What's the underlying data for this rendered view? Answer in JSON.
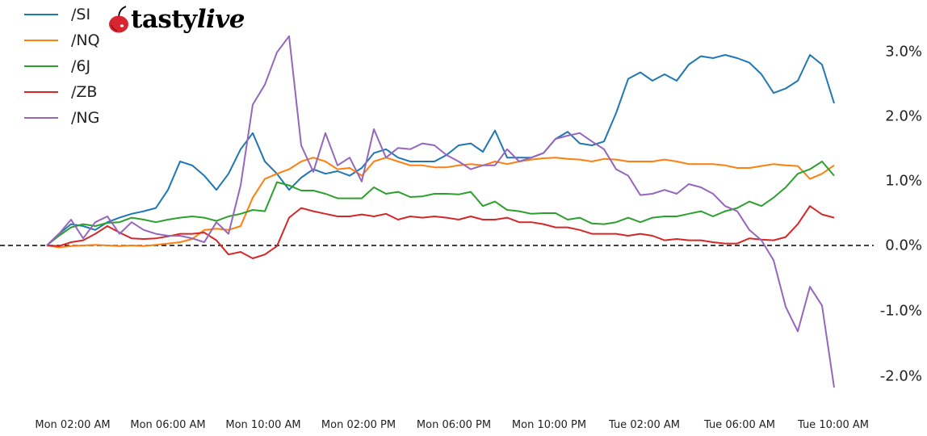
{
  "logo": {
    "brand_part1": "tasty",
    "brand_part2": "live",
    "icon": "cherry-icon",
    "cherry_color": "#d7262f"
  },
  "chart_data": {
    "type": "line",
    "title": "",
    "xlabel": "",
    "ylabel": "",
    "ylim": [
      -2.3,
      3.8
    ],
    "y_unit": "%",
    "grid": false,
    "legend_position": "upper left",
    "reference_line": {
      "y": 0.0,
      "style": "dashed",
      "color": "#000000"
    },
    "x_tick_labels": [
      "Mon 02:00 AM",
      "Mon 06:00 AM",
      "Mon 10:00 AM",
      "Mon 02:00 PM",
      "Mon 06:00 PM",
      "Mon 10:00 PM",
      "Tue 02:00 AM",
      "Tue 06:00 AM",
      "Tue 10:00 AM"
    ],
    "y_tick_labels": [
      "3.0%",
      "2.0%",
      "1.0%",
      "0.0%",
      "-1.0%",
      "-2.0%"
    ],
    "y_tick_values": [
      3.0,
      2.0,
      1.0,
      0.0,
      -1.0,
      -2.0
    ],
    "x": [
      "Mon 01:05",
      "Mon 01:35",
      "Mon 02:05",
      "Mon 02:35",
      "Mon 03:05",
      "Mon 03:35",
      "Mon 04:05",
      "Mon 04:35",
      "Mon 05:05",
      "Mon 05:35",
      "Mon 06:05",
      "Mon 06:35",
      "Mon 07:05",
      "Mon 07:35",
      "Mon 08:05",
      "Mon 08:35",
      "Mon 09:05",
      "Mon 09:35",
      "Mon 10:05",
      "Mon 10:35",
      "Mon 11:05",
      "Mon 11:35",
      "Mon 12:05",
      "Mon 12:35",
      "Mon 13:05",
      "Mon 13:35",
      "Mon 14:05",
      "Mon 14:35",
      "Mon 15:05",
      "Mon 15:35",
      "Mon 16:05",
      "Mon 16:35",
      "Mon 17:05",
      "Mon 17:35",
      "Mon 18:05",
      "Mon 18:35",
      "Mon 19:05",
      "Mon 19:35",
      "Mon 20:05",
      "Mon 20:35",
      "Mon 21:05",
      "Mon 21:35",
      "Mon 22:05",
      "Mon 22:35",
      "Mon 23:05",
      "Mon 23:35",
      "Tue 00:05",
      "Tue 00:35",
      "Tue 01:05",
      "Tue 01:35",
      "Tue 02:05",
      "Tue 02:35",
      "Tue 03:05",
      "Tue 03:35",
      "Tue 04:05",
      "Tue 04:35",
      "Tue 05:05",
      "Tue 05:35",
      "Tue 06:05",
      "Tue 06:35",
      "Tue 07:05",
      "Tue 07:35",
      "Tue 08:05",
      "Tue 08:35",
      "Tue 09:05",
      "Tue 09:35"
    ],
    "series": [
      {
        "name": "/SI",
        "color": "#1f77b4",
        "values": [
          0.0,
          0.18,
          0.33,
          0.3,
          0.24,
          0.36,
          0.43,
          0.49,
          0.53,
          0.58,
          0.86,
          1.3,
          1.24,
          1.08,
          0.86,
          1.11,
          1.49,
          1.74,
          1.3,
          1.11,
          0.86,
          1.05,
          1.18,
          1.11,
          1.15,
          1.08,
          1.2,
          1.43,
          1.49,
          1.36,
          1.3,
          1.3,
          1.3,
          1.4,
          1.55,
          1.58,
          1.45,
          1.78,
          1.36,
          1.36,
          1.36,
          1.43,
          1.65,
          1.76,
          1.58,
          1.55,
          1.61,
          2.05,
          2.58,
          2.68,
          2.55,
          2.65,
          2.55,
          2.8,
          2.93,
          2.9,
          2.95,
          2.9,
          2.83,
          2.65,
          2.36,
          2.43,
          2.55,
          2.95,
          2.8,
          2.2
        ]
      },
      {
        "name": "/NQ",
        "color": "#ff7f0e",
        "values": [
          0.0,
          -0.03,
          -0.01,
          0.0,
          0.01,
          0.0,
          -0.01,
          0.0,
          -0.01,
          0.01,
          0.03,
          0.05,
          0.1,
          0.24,
          0.26,
          0.24,
          0.3,
          0.74,
          1.03,
          1.11,
          1.18,
          1.3,
          1.36,
          1.3,
          1.18,
          1.2,
          1.08,
          1.3,
          1.36,
          1.3,
          1.24,
          1.24,
          1.21,
          1.21,
          1.24,
          1.26,
          1.24,
          1.3,
          1.26,
          1.3,
          1.33,
          1.35,
          1.36,
          1.34,
          1.33,
          1.3,
          1.34,
          1.33,
          1.3,
          1.3,
          1.3,
          1.33,
          1.3,
          1.26,
          1.26,
          1.26,
          1.24,
          1.2,
          1.2,
          1.23,
          1.26,
          1.24,
          1.23,
          1.03,
          1.11,
          1.24
        ]
      },
      {
        "name": "/6J",
        "color": "#2ca02c",
        "values": [
          0.0,
          0.15,
          0.28,
          0.33,
          0.3,
          0.35,
          0.36,
          0.43,
          0.4,
          0.36,
          0.4,
          0.43,
          0.45,
          0.43,
          0.38,
          0.45,
          0.49,
          0.55,
          0.53,
          0.98,
          0.93,
          0.85,
          0.85,
          0.8,
          0.73,
          0.73,
          0.73,
          0.9,
          0.8,
          0.83,
          0.75,
          0.76,
          0.8,
          0.8,
          0.79,
          0.83,
          0.61,
          0.68,
          0.55,
          0.53,
          0.49,
          0.5,
          0.5,
          0.4,
          0.43,
          0.34,
          0.33,
          0.36,
          0.43,
          0.36,
          0.43,
          0.45,
          0.45,
          0.49,
          0.53,
          0.45,
          0.53,
          0.58,
          0.68,
          0.61,
          0.74,
          0.9,
          1.11,
          1.18,
          1.3,
          1.08
        ]
      },
      {
        "name": "/ZB",
        "color": "#d62728",
        "values": [
          0.0,
          -0.01,
          0.05,
          0.08,
          0.18,
          0.3,
          0.2,
          0.11,
          0.1,
          0.11,
          0.14,
          0.18,
          0.18,
          0.2,
          0.08,
          -0.14,
          -0.1,
          -0.2,
          -0.14,
          -0.01,
          0.43,
          0.58,
          0.53,
          0.49,
          0.45,
          0.45,
          0.48,
          0.45,
          0.49,
          0.4,
          0.45,
          0.43,
          0.45,
          0.43,
          0.4,
          0.45,
          0.4,
          0.4,
          0.43,
          0.36,
          0.36,
          0.33,
          0.28,
          0.28,
          0.24,
          0.18,
          0.18,
          0.18,
          0.15,
          0.18,
          0.15,
          0.08,
          0.1,
          0.08,
          0.08,
          0.05,
          0.03,
          0.03,
          0.11,
          0.09,
          0.08,
          0.13,
          0.33,
          0.61,
          0.48,
          0.43
        ]
      },
      {
        "name": "/NG",
        "color": "#9467bd",
        "values": [
          0.0,
          0.18,
          0.4,
          0.11,
          0.36,
          0.45,
          0.18,
          0.36,
          0.24,
          0.18,
          0.15,
          0.15,
          0.11,
          0.05,
          0.36,
          0.18,
          0.93,
          2.18,
          2.49,
          2.99,
          3.24,
          1.55,
          1.14,
          1.74,
          1.24,
          1.36,
          0.99,
          1.8,
          1.36,
          1.51,
          1.49,
          1.58,
          1.55,
          1.4,
          1.3,
          1.18,
          1.24,
          1.24,
          1.49,
          1.3,
          1.36,
          1.43,
          1.65,
          1.7,
          1.74,
          1.61,
          1.49,
          1.18,
          1.08,
          0.78,
          0.8,
          0.86,
          0.8,
          0.95,
          0.9,
          0.8,
          0.61,
          0.53,
          0.24,
          0.08,
          -0.23,
          -0.95,
          -1.33,
          -0.64,
          -0.93,
          -2.2
        ]
      }
    ]
  }
}
